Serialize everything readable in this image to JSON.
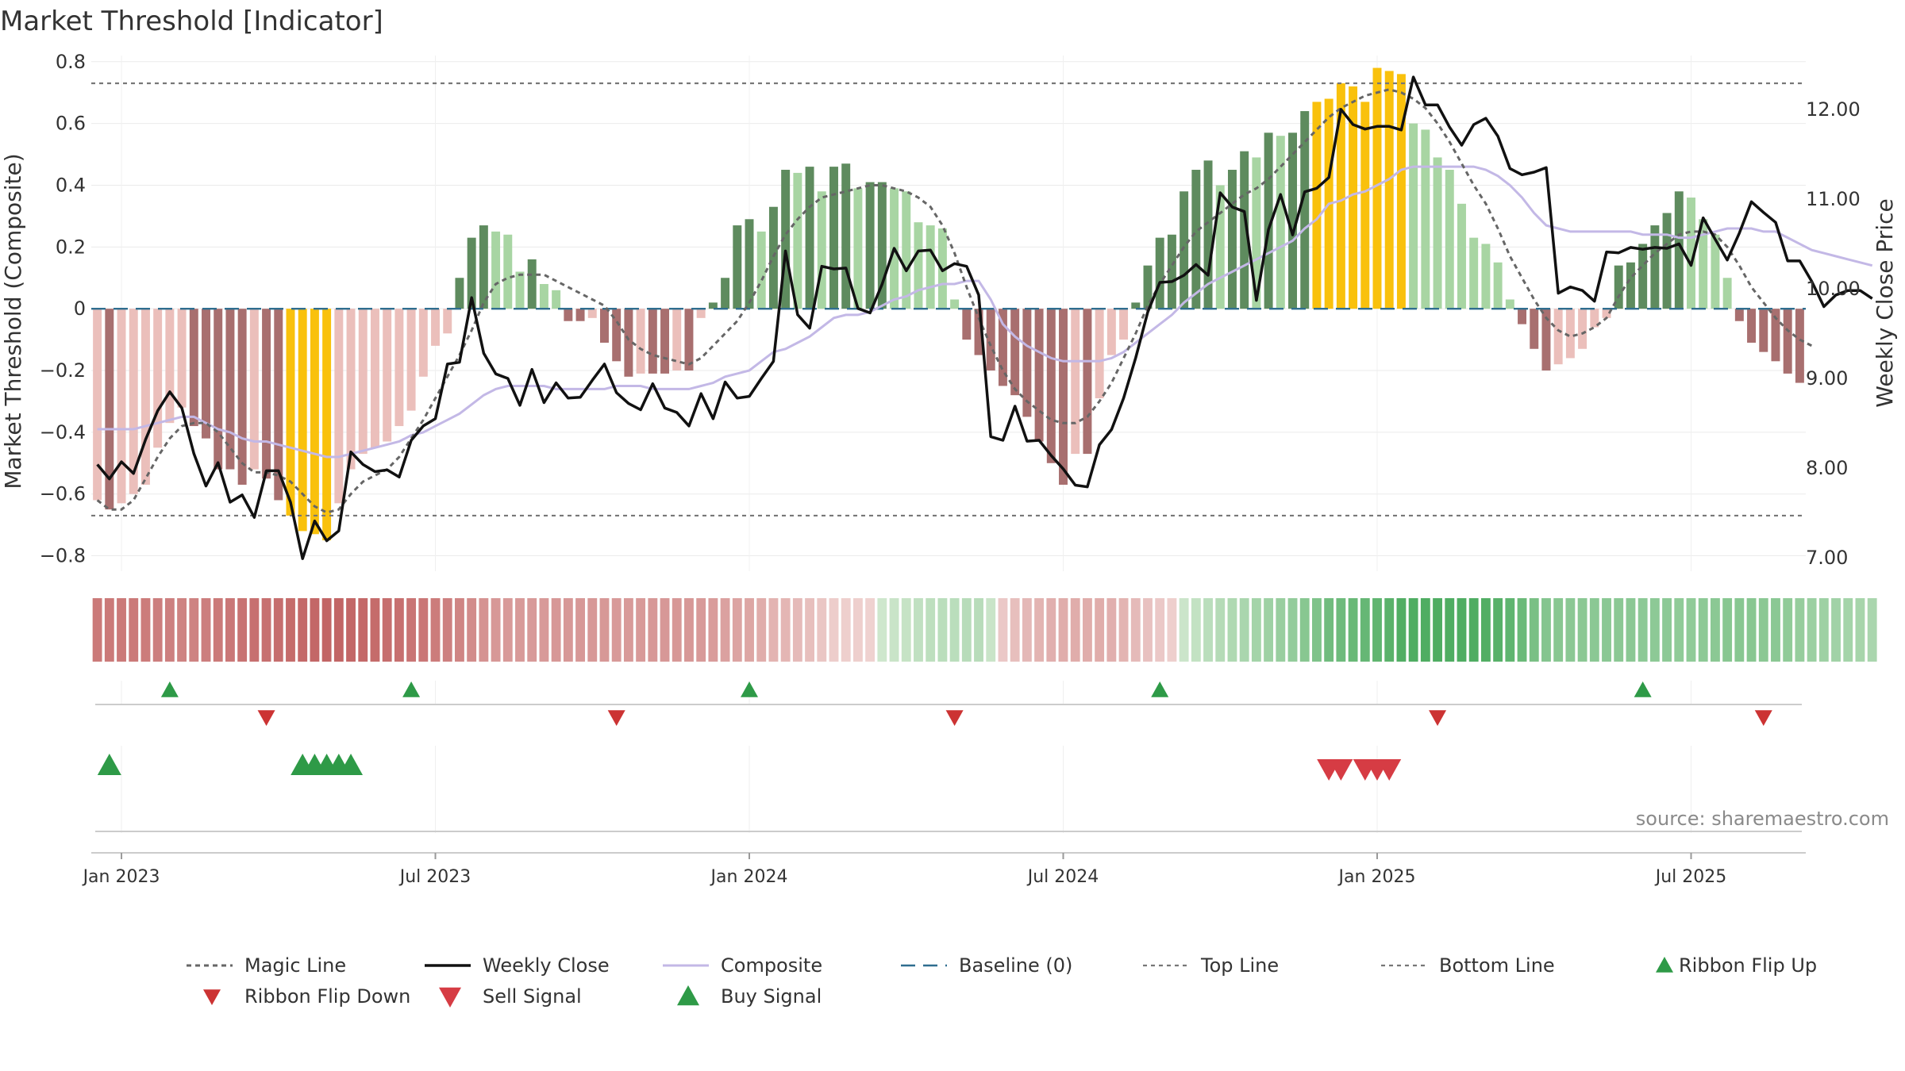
{
  "title": "Market Threshold [Indicator]",
  "source": "source: sharemaestro.com",
  "chart_data": {
    "type": "bar",
    "title": "Market Threshold [Indicator]",
    "ylabel": "Market Threshold (Composite)",
    "y2label": "Weekly Close Price",
    "ylim": [
      -0.85,
      0.82
    ],
    "y2lim": [
      6.85,
      12.6
    ],
    "y_ticks": [
      {
        "v": 0.8,
        "label": "0.8"
      },
      {
        "v": 0.6,
        "label": "0.6"
      },
      {
        "v": 0.4,
        "label": "0.4"
      },
      {
        "v": 0.2,
        "label": "0.2"
      },
      {
        "v": 0,
        "label": "0"
      },
      {
        "v": -0.2,
        "label": "−0.2"
      },
      {
        "v": -0.4,
        "label": "−0.4"
      },
      {
        "v": -0.6,
        "label": "−0.6"
      },
      {
        "v": -0.8,
        "label": "−0.8"
      }
    ],
    "y2_ticks": [
      {
        "v": 12,
        "label": "12.00"
      },
      {
        "v": 11,
        "label": "11.00"
      },
      {
        "v": 10,
        "label": "10.00"
      },
      {
        "v": 9,
        "label": "9.00"
      },
      {
        "v": 8,
        "label": "8.00"
      },
      {
        "v": 7,
        "label": "7.00"
      }
    ],
    "x_ticks": [
      {
        "week": 2,
        "label": "Jan 2023"
      },
      {
        "week": 28,
        "label": "Jul 2023"
      },
      {
        "week": 54,
        "label": "Jan 2024"
      },
      {
        "week": 80,
        "label": "Jul 2024"
      },
      {
        "week": 106,
        "label": "Jan 2025"
      },
      {
        "week": 132,
        "label": "Jul 2025"
      }
    ],
    "top_line": 0.73,
    "bottom_line": -0.67,
    "composite": [
      -0.62,
      -0.65,
      -0.63,
      -0.6,
      -0.57,
      -0.45,
      -0.37,
      -0.32,
      -0.38,
      -0.42,
      -0.52,
      -0.52,
      -0.57,
      -0.52,
      -0.55,
      -0.62,
      -0.67,
      -0.72,
      -0.73,
      -0.75,
      -0.63,
      -0.52,
      -0.47,
      -0.45,
      -0.43,
      -0.38,
      -0.33,
      -0.22,
      -0.12,
      -0.08,
      0.1,
      0.23,
      0.27,
      0.25,
      0.24,
      0.12,
      0.16,
      0.08,
      0.06,
      -0.04,
      -0.04,
      -0.03,
      -0.11,
      -0.17,
      -0.22,
      -0.21,
      -0.21,
      -0.21,
      -0.2,
      -0.2,
      -0.03,
      0.02,
      0.1,
      0.27,
      0.29,
      0.25,
      0.33,
      0.45,
      0.44,
      0.46,
      0.38,
      0.46,
      0.47,
      0.39,
      0.41,
      0.41,
      0.39,
      0.38,
      0.28,
      0.27,
      0.26,
      0.03,
      -0.1,
      -0.15,
      -0.2,
      -0.25,
      -0.28,
      -0.35,
      -0.43,
      -0.5,
      -0.57,
      -0.47,
      -0.47,
      -0.29,
      -0.15,
      -0.1,
      0.02,
      0.14,
      0.23,
      0.24,
      0.38,
      0.45,
      0.48,
      0.4,
      0.45,
      0.51,
      0.49,
      0.57,
      0.56,
      0.57,
      0.64,
      0.67,
      0.68,
      0.73,
      0.72,
      0.67,
      0.78,
      0.77,
      0.76,
      0.6,
      0.58,
      0.49,
      0.45,
      0.34,
      0.23,
      0.21,
      0.15,
      0.03,
      -0.05,
      -0.13,
      -0.2,
      -0.18,
      -0.16,
      -0.13,
      -0.06,
      -0.03,
      0.14,
      0.15,
      0.21,
      0.27,
      0.31,
      0.38,
      0.36,
      0.29,
      0.24,
      0.1,
      -0.04,
      -0.11,
      -0.14,
      -0.17,
      -0.21,
      -0.24
    ],
    "weekly_close": [
      8.04,
      7.88,
      8.07,
      7.94,
      8.32,
      8.64,
      8.85,
      8.67,
      8.16,
      7.8,
      8.06,
      7.62,
      7.7,
      7.45,
      7.97,
      7.97,
      7.62,
      6.99,
      7.41,
      7.19,
      7.3,
      8.18,
      8.04,
      7.96,
      7.98,
      7.9,
      8.31,
      8.47,
      8.55,
      9.16,
      9.18,
      9.9,
      9.28,
      9.05,
      9.0,
      8.7,
      9.1,
      8.73,
      8.95,
      8.78,
      8.79,
      8.98,
      9.16,
      8.84,
      8.72,
      8.65,
      8.94,
      8.67,
      8.62,
      8.47,
      8.83,
      8.55,
      8.96,
      8.78,
      8.8,
      9.0,
      9.19,
      10.42,
      9.71,
      9.56,
      10.25,
      10.22,
      10.23,
      9.78,
      9.73,
      10.05,
      10.45,
      10.2,
      10.42,
      10.43,
      10.2,
      10.28,
      10.25,
      9.93,
      8.35,
      8.31,
      8.69,
      8.3,
      8.31,
      8.14,
      7.99,
      7.81,
      7.79,
      8.26,
      8.43,
      8.78,
      9.23,
      9.74,
      10.07,
      10.08,
      10.15,
      10.27,
      10.15,
      11.07,
      10.91,
      10.86,
      9.87,
      10.66,
      11.05,
      10.6,
      11.08,
      11.12,
      11.24,
      12.0,
      11.83,
      11.78,
      11.81,
      11.81,
      11.77,
      12.36,
      12.05,
      12.05,
      11.8,
      11.6,
      11.83,
      11.9,
      11.7,
      11.34,
      11.27,
      11.3,
      11.35,
      9.95,
      10.02,
      9.98,
      9.86,
      10.41,
      10.4,
      10.46,
      10.44,
      10.46,
      10.45,
      10.5,
      10.26,
      10.79,
      10.55,
      10.32,
      10.62,
      10.97,
      10.85,
      10.74,
      10.31,
      10.31,
      10.08,
      9.8,
      9.93,
      9.98,
      9.98,
      9.89
    ],
    "composite_line": [
      -0.39,
      -0.39,
      -0.39,
      -0.39,
      -0.38,
      -0.37,
      -0.36,
      -0.35,
      -0.35,
      -0.37,
      -0.39,
      -0.4,
      -0.42,
      -0.43,
      -0.43,
      -0.44,
      -0.45,
      -0.46,
      -0.47,
      -0.48,
      -0.48,
      -0.47,
      -0.46,
      -0.45,
      -0.44,
      -0.43,
      -0.41,
      -0.4,
      -0.38,
      -0.36,
      -0.34,
      -0.31,
      -0.28,
      -0.26,
      -0.25,
      -0.25,
      -0.25,
      -0.25,
      -0.26,
      -0.26,
      -0.26,
      -0.26,
      -0.26,
      -0.25,
      -0.25,
      -0.25,
      -0.26,
      -0.26,
      -0.26,
      -0.26,
      -0.25,
      -0.24,
      -0.22,
      -0.21,
      -0.2,
      -0.17,
      -0.14,
      -0.13,
      -0.11,
      -0.09,
      -0.06,
      -0.03,
      -0.02,
      -0.02,
      -0.01,
      0.01,
      0.03,
      0.04,
      0.06,
      0.07,
      0.08,
      0.08,
      0.09,
      0.09,
      0.03,
      -0.05,
      -0.09,
      -0.12,
      -0.14,
      -0.16,
      -0.17,
      -0.17,
      -0.17,
      -0.17,
      -0.16,
      -0.14,
      -0.11,
      -0.08,
      -0.05,
      -0.02,
      0.02,
      0.05,
      0.08,
      0.1,
      0.12,
      0.14,
      0.16,
      0.18,
      0.2,
      0.22,
      0.26,
      0.29,
      0.34,
      0.35,
      0.37,
      0.38,
      0.4,
      0.42,
      0.45,
      0.46,
      0.46,
      0.46,
      0.46,
      0.46,
      0.46,
      0.45,
      0.43,
      0.4,
      0.36,
      0.31,
      0.27,
      0.26,
      0.25,
      0.25,
      0.25,
      0.25,
      0.25,
      0.25,
      0.24,
      0.24,
      0.24,
      0.23,
      0.23,
      0.24,
      0.25,
      0.26,
      0.26,
      0.26,
      0.25,
      0.25,
      0.23,
      0.21,
      0.19,
      0.18,
      0.17,
      0.16,
      0.15,
      0.14
    ],
    "magic_line": [
      -0.62,
      -0.65,
      -0.65,
      -0.62,
      -0.55,
      -0.48,
      -0.42,
      -0.38,
      -0.37,
      -0.37,
      -0.4,
      -0.45,
      -0.5,
      -0.53,
      -0.53,
      -0.54,
      -0.56,
      -0.6,
      -0.64,
      -0.66,
      -0.65,
      -0.6,
      -0.56,
      -0.54,
      -0.52,
      -0.48,
      -0.42,
      -0.36,
      -0.29,
      -0.22,
      -0.15,
      -0.07,
      0.02,
      0.08,
      0.1,
      0.11,
      0.11,
      0.11,
      0.09,
      0.07,
      0.05,
      0.03,
      0.01,
      -0.04,
      -0.1,
      -0.13,
      -0.15,
      -0.16,
      -0.17,
      -0.18,
      -0.16,
      -0.12,
      -0.08,
      -0.04,
      0.02,
      0.09,
      0.17,
      0.24,
      0.29,
      0.33,
      0.36,
      0.37,
      0.38,
      0.39,
      0.4,
      0.4,
      0.39,
      0.38,
      0.36,
      0.33,
      0.27,
      0.18,
      0.07,
      -0.03,
      -0.12,
      -0.2,
      -0.26,
      -0.3,
      -0.33,
      -0.36,
      -0.37,
      -0.37,
      -0.35,
      -0.3,
      -0.24,
      -0.16,
      -0.08,
      0.01,
      0.08,
      0.14,
      0.2,
      0.25,
      0.28,
      0.31,
      0.34,
      0.37,
      0.39,
      0.42,
      0.46,
      0.5,
      0.54,
      0.58,
      0.62,
      0.65,
      0.67,
      0.69,
      0.7,
      0.71,
      0.7,
      0.68,
      0.65,
      0.6,
      0.54,
      0.47,
      0.4,
      0.34,
      0.26,
      0.17,
      0.1,
      0.03,
      -0.03,
      -0.07,
      -0.09,
      -0.08,
      -0.06,
      -0.03,
      0.04,
      0.1,
      0.14,
      0.18,
      0.21,
      0.24,
      0.25,
      0.25,
      0.24,
      0.2,
      0.14,
      0.07,
      0.02,
      -0.03,
      -0.07,
      -0.1,
      -0.12
    ],
    "ribbon_flip_up_weeks": [
      6,
      26,
      54,
      88,
      128
    ],
    "ribbon_flip_down_weeks": [
      14,
      43,
      71,
      111,
      138
    ],
    "buy_signal_weeks": [
      1,
      17,
      18,
      19,
      20,
      21
    ],
    "sell_signal_weeks": [
      102,
      103,
      105,
      106,
      107
    ],
    "legend": [
      {
        "key": "magic",
        "label": "Magic Line"
      },
      {
        "key": "close",
        "label": "Weekly Close"
      },
      {
        "key": "composite",
        "label": "Composite"
      },
      {
        "key": "baseline",
        "label": "Baseline (0)"
      },
      {
        "key": "top",
        "label": "Top Line"
      },
      {
        "key": "bottom",
        "label": "Bottom Line"
      },
      {
        "key": "flipup",
        "label": "Ribbon Flip Up"
      },
      {
        "key": "flipdown",
        "label": "Ribbon Flip Down"
      },
      {
        "key": "sell",
        "label": "Sell Signal"
      },
      {
        "key": "buy",
        "label": "Buy Signal"
      }
    ],
    "legend_position": "bottom",
    "grid": true,
    "colors": {
      "strong_green": "#5e8b5e",
      "light_green": "#a8d5a3",
      "strong_red": "#a86f6f",
      "light_red": "#ebbfbb",
      "extreme": "#f9c10c",
      "close": "#111111",
      "composite_line": "#c3b8e6",
      "magic": "#666666",
      "baseline": "#2f6e8f",
      "threshold": "#777777",
      "buy": "#2e9a47",
      "sell": "#d63c44",
      "flip_down": "#cc3333"
    }
  }
}
